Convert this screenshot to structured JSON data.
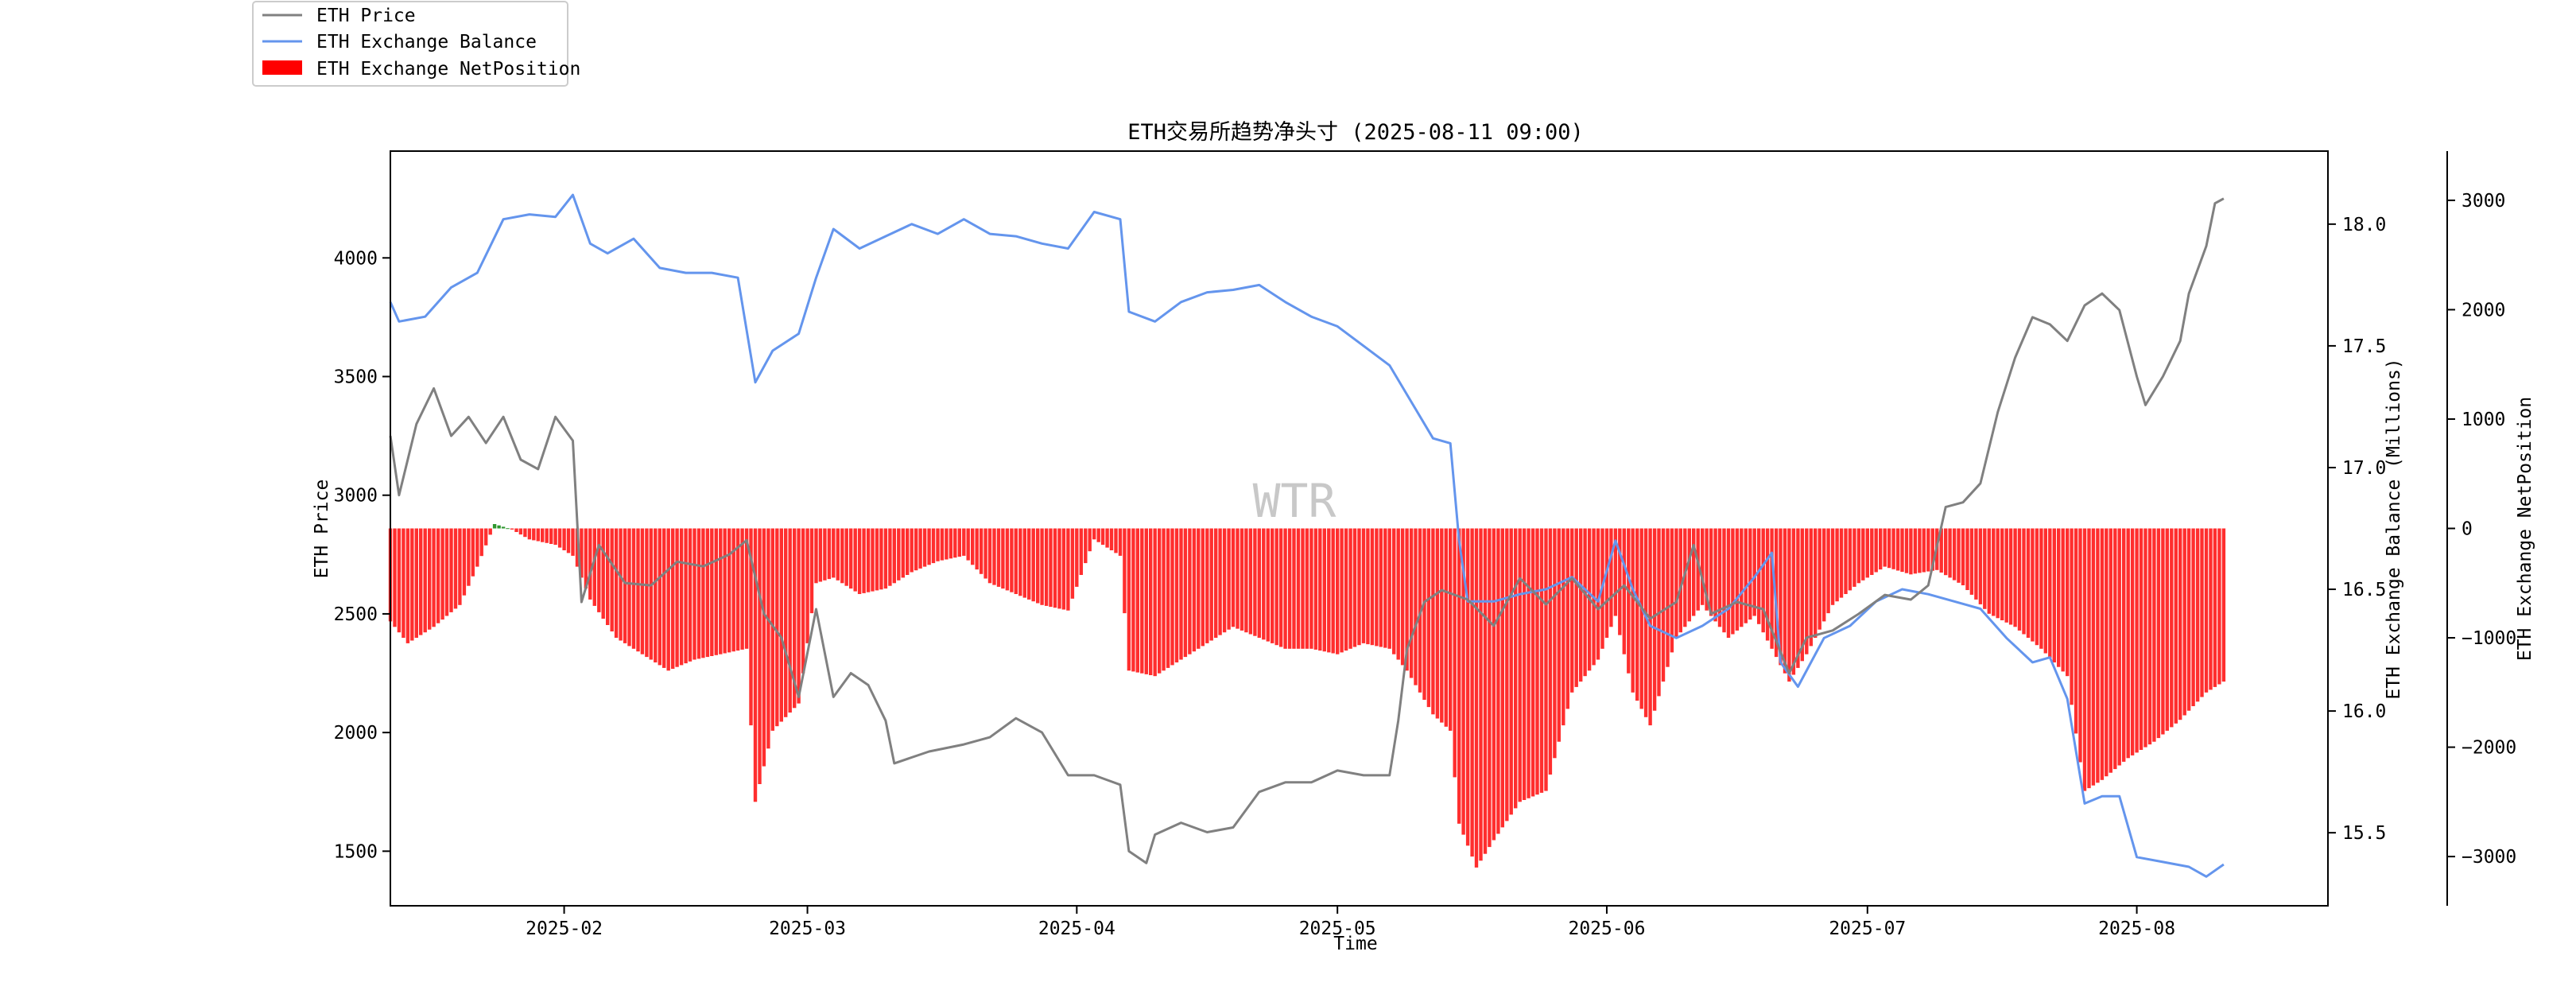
{
  "chart_data": {
    "type": "line",
    "title": "ETH交易所趋势净头寸 (2025-08-11 09:00)",
    "xlabel": "Time",
    "ylabel_left": "ETH Price",
    "ylabel_right1": "ETH Exchange Balance (Millions)",
    "ylabel_right2": "ETH Exchange NetPosition",
    "watermark": "WTR",
    "x_range": [
      "2025-01-12",
      "2025-08-23"
    ],
    "x_ticks": [
      "2025-02",
      "2025-03",
      "2025-04",
      "2025-05",
      "2025-06",
      "2025-07",
      "2025-08"
    ],
    "price_axis": {
      "min": 1270,
      "max": 4450,
      "ticks": [
        1500,
        2000,
        2500,
        3000,
        3500,
        4000
      ]
    },
    "balance_axis": {
      "min": 15.2,
      "max": 18.3,
      "ticks": [
        15.5,
        16.0,
        16.5,
        17.0,
        17.5,
        18.0
      ]
    },
    "netpos_axis": {
      "min": -3450,
      "max": 3450,
      "ticks": [
        -3000,
        -2000,
        -1000,
        0,
        1000,
        2000,
        3000
      ]
    },
    "legend": {
      "placement": "upper-left",
      "entries": [
        {
          "label": "ETH Price",
          "color": "#808080",
          "kind": "line"
        },
        {
          "label": "ETH Exchange Balance",
          "color": "#6495ED",
          "kind": "line"
        },
        {
          "label": "ETH Exchange NetPosition",
          "color": "#ff0000",
          "kind": "bar"
        }
      ]
    },
    "colors": {
      "price": "#808080",
      "balance": "#6495ED",
      "netpos_negative": "#ff0000",
      "netpos_positive": "#008000"
    },
    "series": [
      {
        "name": "ETH Price",
        "axis": "left",
        "points": [
          [
            "2025-01-12",
            3250
          ],
          [
            "2025-01-13",
            3000
          ],
          [
            "2025-01-15",
            3300
          ],
          [
            "2025-01-17",
            3450
          ],
          [
            "2025-01-19",
            3250
          ],
          [
            "2025-01-21",
            3330
          ],
          [
            "2025-01-23",
            3220
          ],
          [
            "2025-01-25",
            3330
          ],
          [
            "2025-01-27",
            3150
          ],
          [
            "2025-01-29",
            3110
          ],
          [
            "2025-01-31",
            3330
          ],
          [
            "2025-02-02",
            3230
          ],
          [
            "2025-02-03",
            2550
          ],
          [
            "2025-02-05",
            2790
          ],
          [
            "2025-02-08",
            2630
          ],
          [
            "2025-02-11",
            2620
          ],
          [
            "2025-02-14",
            2720
          ],
          [
            "2025-02-17",
            2700
          ],
          [
            "2025-02-20",
            2750
          ],
          [
            "2025-02-22",
            2810
          ],
          [
            "2025-02-24",
            2500
          ],
          [
            "2025-02-26",
            2400
          ],
          [
            "2025-02-28",
            2150
          ],
          [
            "2025-03-02",
            2520
          ],
          [
            "2025-03-04",
            2150
          ],
          [
            "2025-03-06",
            2250
          ],
          [
            "2025-03-08",
            2200
          ],
          [
            "2025-03-10",
            2050
          ],
          [
            "2025-03-11",
            1870
          ],
          [
            "2025-03-15",
            1920
          ],
          [
            "2025-03-19",
            1950
          ],
          [
            "2025-03-22",
            1980
          ],
          [
            "2025-03-25",
            2060
          ],
          [
            "2025-03-28",
            2000
          ],
          [
            "2025-03-31",
            1820
          ],
          [
            "2025-04-03",
            1820
          ],
          [
            "2025-04-06",
            1780
          ],
          [
            "2025-04-07",
            1500
          ],
          [
            "2025-04-09",
            1450
          ],
          [
            "2025-04-10",
            1570
          ],
          [
            "2025-04-13",
            1620
          ],
          [
            "2025-04-16",
            1580
          ],
          [
            "2025-04-19",
            1600
          ],
          [
            "2025-04-22",
            1750
          ],
          [
            "2025-04-25",
            1790
          ],
          [
            "2025-04-28",
            1790
          ],
          [
            "2025-05-01",
            1840
          ],
          [
            "2025-05-04",
            1820
          ],
          [
            "2025-05-07",
            1820
          ],
          [
            "2025-05-08",
            2050
          ],
          [
            "2025-05-09",
            2350
          ],
          [
            "2025-05-11",
            2550
          ],
          [
            "2025-05-13",
            2600
          ],
          [
            "2025-05-16",
            2560
          ],
          [
            "2025-05-19",
            2450
          ],
          [
            "2025-05-22",
            2650
          ],
          [
            "2025-05-25",
            2540
          ],
          [
            "2025-05-28",
            2650
          ],
          [
            "2025-05-31",
            2520
          ],
          [
            "2025-06-03",
            2620
          ],
          [
            "2025-06-06",
            2480
          ],
          [
            "2025-06-09",
            2550
          ],
          [
            "2025-06-11",
            2790
          ],
          [
            "2025-06-13",
            2500
          ],
          [
            "2025-06-16",
            2550
          ],
          [
            "2025-06-19",
            2520
          ],
          [
            "2025-06-22",
            2250
          ],
          [
            "2025-06-24",
            2400
          ],
          [
            "2025-06-27",
            2430
          ],
          [
            "2025-06-30",
            2500
          ],
          [
            "2025-07-03",
            2580
          ],
          [
            "2025-07-06",
            2560
          ],
          [
            "2025-07-08",
            2620
          ],
          [
            "2025-07-10",
            2950
          ],
          [
            "2025-07-12",
            2970
          ],
          [
            "2025-07-14",
            3050
          ],
          [
            "2025-07-16",
            3350
          ],
          [
            "2025-07-18",
            3580
          ],
          [
            "2025-07-20",
            3750
          ],
          [
            "2025-07-22",
            3720
          ],
          [
            "2025-07-24",
            3650
          ],
          [
            "2025-07-26",
            3800
          ],
          [
            "2025-07-28",
            3850
          ],
          [
            "2025-07-30",
            3780
          ],
          [
            "2025-08-01",
            3500
          ],
          [
            "2025-08-02",
            3380
          ],
          [
            "2025-08-04",
            3500
          ],
          [
            "2025-08-06",
            3650
          ],
          [
            "2025-08-07",
            3850
          ],
          [
            "2025-08-09",
            4050
          ],
          [
            "2025-08-10",
            4230
          ],
          [
            "2025-08-11",
            4250
          ]
        ]
      },
      {
        "name": "ETH Exchange Balance",
        "axis": "right1",
        "points": [
          [
            "2025-01-12",
            17.68
          ],
          [
            "2025-01-13",
            17.6
          ],
          [
            "2025-01-16",
            17.62
          ],
          [
            "2025-01-19",
            17.74
          ],
          [
            "2025-01-22",
            17.8
          ],
          [
            "2025-01-25",
            18.02
          ],
          [
            "2025-01-28",
            18.04
          ],
          [
            "2025-01-31",
            18.03
          ],
          [
            "2025-02-02",
            18.12
          ],
          [
            "2025-02-04",
            17.92
          ],
          [
            "2025-02-06",
            17.88
          ],
          [
            "2025-02-09",
            17.94
          ],
          [
            "2025-02-12",
            17.82
          ],
          [
            "2025-02-15",
            17.8
          ],
          [
            "2025-02-18",
            17.8
          ],
          [
            "2025-02-21",
            17.78
          ],
          [
            "2025-02-23",
            17.35
          ],
          [
            "2025-02-25",
            17.48
          ],
          [
            "2025-02-28",
            17.55
          ],
          [
            "2025-03-02",
            17.78
          ],
          [
            "2025-03-04",
            17.98
          ],
          [
            "2025-03-07",
            17.9
          ],
          [
            "2025-03-10",
            17.95
          ],
          [
            "2025-03-13",
            18.0
          ],
          [
            "2025-03-16",
            17.96
          ],
          [
            "2025-03-19",
            18.02
          ],
          [
            "2025-03-22",
            17.96
          ],
          [
            "2025-03-25",
            17.95
          ],
          [
            "2025-03-28",
            17.92
          ],
          [
            "2025-03-31",
            17.9
          ],
          [
            "2025-04-03",
            18.05
          ],
          [
            "2025-04-06",
            18.02
          ],
          [
            "2025-04-07",
            17.64
          ],
          [
            "2025-04-10",
            17.6
          ],
          [
            "2025-04-13",
            17.68
          ],
          [
            "2025-04-16",
            17.72
          ],
          [
            "2025-04-19",
            17.73
          ],
          [
            "2025-04-22",
            17.75
          ],
          [
            "2025-04-25",
            17.68
          ],
          [
            "2025-04-28",
            17.62
          ],
          [
            "2025-05-01",
            17.58
          ],
          [
            "2025-05-04",
            17.5
          ],
          [
            "2025-05-07",
            17.42
          ],
          [
            "2025-05-09",
            17.3
          ],
          [
            "2025-05-12",
            17.12
          ],
          [
            "2025-05-14",
            17.1
          ],
          [
            "2025-05-15",
            16.7
          ],
          [
            "2025-05-16",
            16.45
          ],
          [
            "2025-05-19",
            16.45
          ],
          [
            "2025-05-22",
            16.48
          ],
          [
            "2025-05-25",
            16.5
          ],
          [
            "2025-05-28",
            16.55
          ],
          [
            "2025-05-31",
            16.45
          ],
          [
            "2025-06-02",
            16.7
          ],
          [
            "2025-06-04",
            16.5
          ],
          [
            "2025-06-06",
            16.35
          ],
          [
            "2025-06-09",
            16.3
          ],
          [
            "2025-06-12",
            16.35
          ],
          [
            "2025-06-15",
            16.42
          ],
          [
            "2025-06-18",
            16.55
          ],
          [
            "2025-06-20",
            16.65
          ],
          [
            "2025-06-21",
            16.2
          ],
          [
            "2025-06-23",
            16.1
          ],
          [
            "2025-06-26",
            16.3
          ],
          [
            "2025-06-29",
            16.35
          ],
          [
            "2025-07-02",
            16.45
          ],
          [
            "2025-07-05",
            16.5
          ],
          [
            "2025-07-08",
            16.48
          ],
          [
            "2025-07-11",
            16.45
          ],
          [
            "2025-07-14",
            16.42
          ],
          [
            "2025-07-17",
            16.3
          ],
          [
            "2025-07-20",
            16.2
          ],
          [
            "2025-07-22",
            16.22
          ],
          [
            "2025-07-24",
            16.05
          ],
          [
            "2025-07-26",
            15.62
          ],
          [
            "2025-07-28",
            15.65
          ],
          [
            "2025-07-30",
            15.65
          ],
          [
            "2025-08-01",
            15.4
          ],
          [
            "2025-08-04",
            15.38
          ],
          [
            "2025-08-07",
            15.36
          ],
          [
            "2025-08-09",
            15.32
          ],
          [
            "2025-08-11",
            15.37
          ]
        ]
      },
      {
        "name": "ETH Exchange NetPosition",
        "axis": "right2",
        "type": "bar",
        "points": [
          [
            "2025-01-12",
            -850
          ],
          [
            "2025-01-14",
            -1050
          ],
          [
            "2025-01-17",
            -900
          ],
          [
            "2025-01-20",
            -700
          ],
          [
            "2025-01-22",
            -350
          ],
          [
            "2025-01-24",
            40
          ],
          [
            "2025-01-26",
            -10
          ],
          [
            "2025-01-28",
            -100
          ],
          [
            "2025-01-31",
            -150
          ],
          [
            "2025-02-02",
            -250
          ],
          [
            "2025-02-04",
            -650
          ],
          [
            "2025-02-07",
            -1000
          ],
          [
            "2025-02-10",
            -1150
          ],
          [
            "2025-02-13",
            -1300
          ],
          [
            "2025-02-16",
            -1200
          ],
          [
            "2025-02-19",
            -1150
          ],
          [
            "2025-02-22",
            -1100
          ],
          [
            "2025-02-23",
            -2500
          ],
          [
            "2025-02-25",
            -1850
          ],
          [
            "2025-02-28",
            -1600
          ],
          [
            "2025-03-02",
            -500
          ],
          [
            "2025-03-04",
            -450
          ],
          [
            "2025-03-07",
            -600
          ],
          [
            "2025-03-10",
            -550
          ],
          [
            "2025-03-13",
            -400
          ],
          [
            "2025-03-16",
            -300
          ],
          [
            "2025-03-19",
            -250
          ],
          [
            "2025-03-22",
            -500
          ],
          [
            "2025-03-25",
            -600
          ],
          [
            "2025-03-28",
            -700
          ],
          [
            "2025-03-31",
            -750
          ],
          [
            "2025-04-03",
            -100
          ],
          [
            "2025-04-06",
            -250
          ],
          [
            "2025-04-07",
            -1300
          ],
          [
            "2025-04-10",
            -1350
          ],
          [
            "2025-04-13",
            -1200
          ],
          [
            "2025-04-16",
            -1050
          ],
          [
            "2025-04-19",
            -900
          ],
          [
            "2025-04-22",
            -1000
          ],
          [
            "2025-04-25",
            -1100
          ],
          [
            "2025-04-28",
            -1100
          ],
          [
            "2025-05-01",
            -1150
          ],
          [
            "2025-05-04",
            -1050
          ],
          [
            "2025-05-07",
            -1100
          ],
          [
            "2025-05-09",
            -1300
          ],
          [
            "2025-05-12",
            -1700
          ],
          [
            "2025-05-14",
            -1850
          ],
          [
            "2025-05-15",
            -2700
          ],
          [
            "2025-05-17",
            -3100
          ],
          [
            "2025-05-19",
            -2850
          ],
          [
            "2025-05-22",
            -2500
          ],
          [
            "2025-05-25",
            -2400
          ],
          [
            "2025-05-28",
            -1500
          ],
          [
            "2025-05-31",
            -1200
          ],
          [
            "2025-06-02",
            -800
          ],
          [
            "2025-06-04",
            -1500
          ],
          [
            "2025-06-06",
            -1800
          ],
          [
            "2025-06-09",
            -1000
          ],
          [
            "2025-06-12",
            -700
          ],
          [
            "2025-06-15",
            -1000
          ],
          [
            "2025-06-18",
            -800
          ],
          [
            "2025-06-20",
            -1100
          ],
          [
            "2025-06-22",
            -1400
          ],
          [
            "2025-06-24",
            -1150
          ],
          [
            "2025-06-27",
            -700
          ],
          [
            "2025-06-30",
            -500
          ],
          [
            "2025-07-03",
            -350
          ],
          [
            "2025-07-06",
            -420
          ],
          [
            "2025-07-09",
            -380
          ],
          [
            "2025-07-12",
            -520
          ],
          [
            "2025-07-15",
            -780
          ],
          [
            "2025-07-18",
            -900
          ],
          [
            "2025-07-21",
            -1100
          ],
          [
            "2025-07-24",
            -1350
          ],
          [
            "2025-07-26",
            -2400
          ],
          [
            "2025-07-28",
            -2300
          ],
          [
            "2025-07-31",
            -2100
          ],
          [
            "2025-08-03",
            -1950
          ],
          [
            "2025-08-06",
            -1750
          ],
          [
            "2025-08-09",
            -1500
          ],
          [
            "2025-08-11",
            -1400
          ]
        ]
      }
    ]
  }
}
